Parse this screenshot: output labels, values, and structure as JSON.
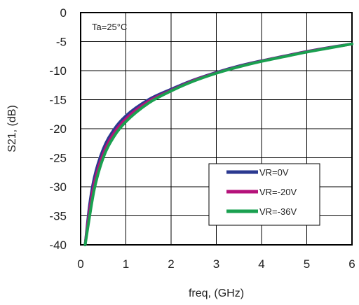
{
  "chart_data": {
    "type": "line",
    "xlabel": "freq, (GHz)",
    "ylabel": "S21, (dB)",
    "annotation": "Ta=25°C",
    "xlim": [
      0,
      6
    ],
    "ylim": [
      -40,
      0
    ],
    "x_ticks": [
      "0",
      "1",
      "2",
      "3",
      "4",
      "5",
      "6"
    ],
    "y_ticks": [
      "0",
      "-5",
      "-10",
      "-15",
      "-20",
      "-25",
      "-30",
      "-35",
      "-40"
    ],
    "grid": true,
    "legend_position": "bottom-right",
    "series": [
      {
        "name": "VR=0V",
        "color": "#2b3990",
        "x": [
          0.1,
          0.2,
          0.3,
          0.5,
          0.75,
          1.0,
          1.5,
          2.0,
          2.5,
          3.0,
          3.5,
          4.0,
          4.5,
          5.0,
          5.5,
          6.0
        ],
        "y": [
          -40,
          -33,
          -28.5,
          -23.5,
          -20,
          -17.8,
          -15,
          -13.2,
          -11.6,
          -10.3,
          -9.2,
          -8.3,
          -7.5,
          -6.7,
          -6.0,
          -5.4
        ]
      },
      {
        "name": "VR=-20V",
        "color": "#b5127a",
        "x": [
          0.1,
          0.2,
          0.3,
          0.5,
          0.75,
          1.0,
          1.5,
          2.0,
          2.5,
          3.0,
          3.5,
          4.0,
          4.5,
          5.0,
          5.5,
          6.0
        ],
        "y": [
          -40,
          -34,
          -29.5,
          -24.3,
          -20.6,
          -18.3,
          -15.3,
          -13.4,
          -11.7,
          -10.4,
          -9.3,
          -8.35,
          -7.55,
          -6.75,
          -6.05,
          -5.4
        ]
      },
      {
        "name": "VR=-36V",
        "color": "#1aa050",
        "x": [
          0.1,
          0.2,
          0.3,
          0.5,
          0.75,
          1.0,
          1.5,
          2.0,
          2.5,
          3.0,
          3.5,
          4.0,
          4.5,
          5.0,
          5.5,
          6.0
        ],
        "y": [
          -40,
          -35,
          -30.5,
          -25,
          -21.2,
          -18.8,
          -15.6,
          -13.5,
          -11.8,
          -10.45,
          -9.35,
          -8.4,
          -7.6,
          -6.8,
          -6.1,
          -5.4
        ]
      }
    ]
  }
}
